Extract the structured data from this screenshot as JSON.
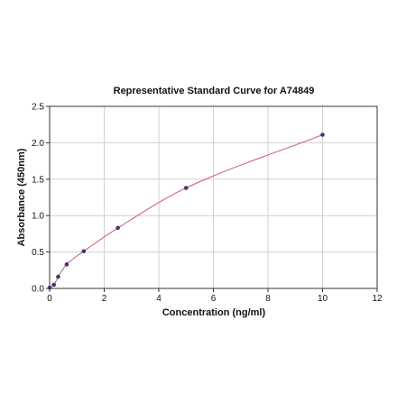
{
  "chart_data": {
    "type": "scatter",
    "title": "Representative Standard Curve for A74849",
    "xlabel": "Concentration (ng/ml)",
    "ylabel": "Absorbance (450nm)",
    "xlim": [
      0,
      12
    ],
    "ylim": [
      0,
      2.5
    ],
    "x_ticks": [
      0,
      2,
      4,
      6,
      8,
      10,
      12
    ],
    "y_ticks": [
      0.0,
      0.5,
      1.0,
      1.5,
      2.0,
      2.5
    ],
    "x_tick_labels": [
      "0",
      "2",
      "4",
      "6",
      "8",
      "10",
      "12"
    ],
    "y_tick_labels": [
      "0.0",
      "0.5",
      "1.0",
      "1.5",
      "2.0",
      "2.5"
    ],
    "grid": true,
    "series": [
      {
        "x": [
          0,
          0.156,
          0.313,
          0.625,
          1.25,
          2.5,
          5,
          10
        ],
        "y": [
          0.01,
          0.05,
          0.16,
          0.33,
          0.51,
          0.83,
          1.38,
          2.11
        ],
        "point_color": "#3d3a6b",
        "fit_line_color": "#c8587a"
      }
    ]
  }
}
